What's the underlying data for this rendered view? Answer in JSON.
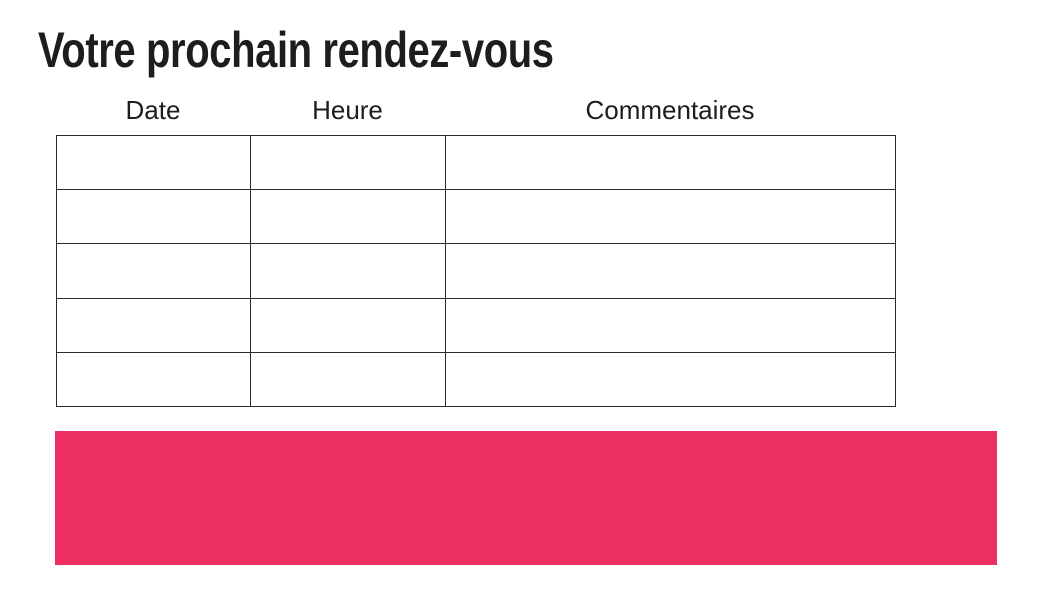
{
  "page": {
    "title": "Votre prochain rendez-vous",
    "background_color": "#ffffff",
    "text_color": "#1d1d1b",
    "accent_color": "#ed2e63"
  },
  "table": {
    "columns": [
      {
        "label": "Date"
      },
      {
        "label": "Heure"
      },
      {
        "label": "Commentaires"
      }
    ],
    "rows": [
      [
        "",
        "",
        ""
      ],
      [
        "",
        "",
        ""
      ],
      [
        "",
        "",
        ""
      ],
      [
        "",
        "",
        ""
      ],
      [
        "",
        "",
        ""
      ]
    ]
  },
  "banner": {
    "text": ""
  }
}
